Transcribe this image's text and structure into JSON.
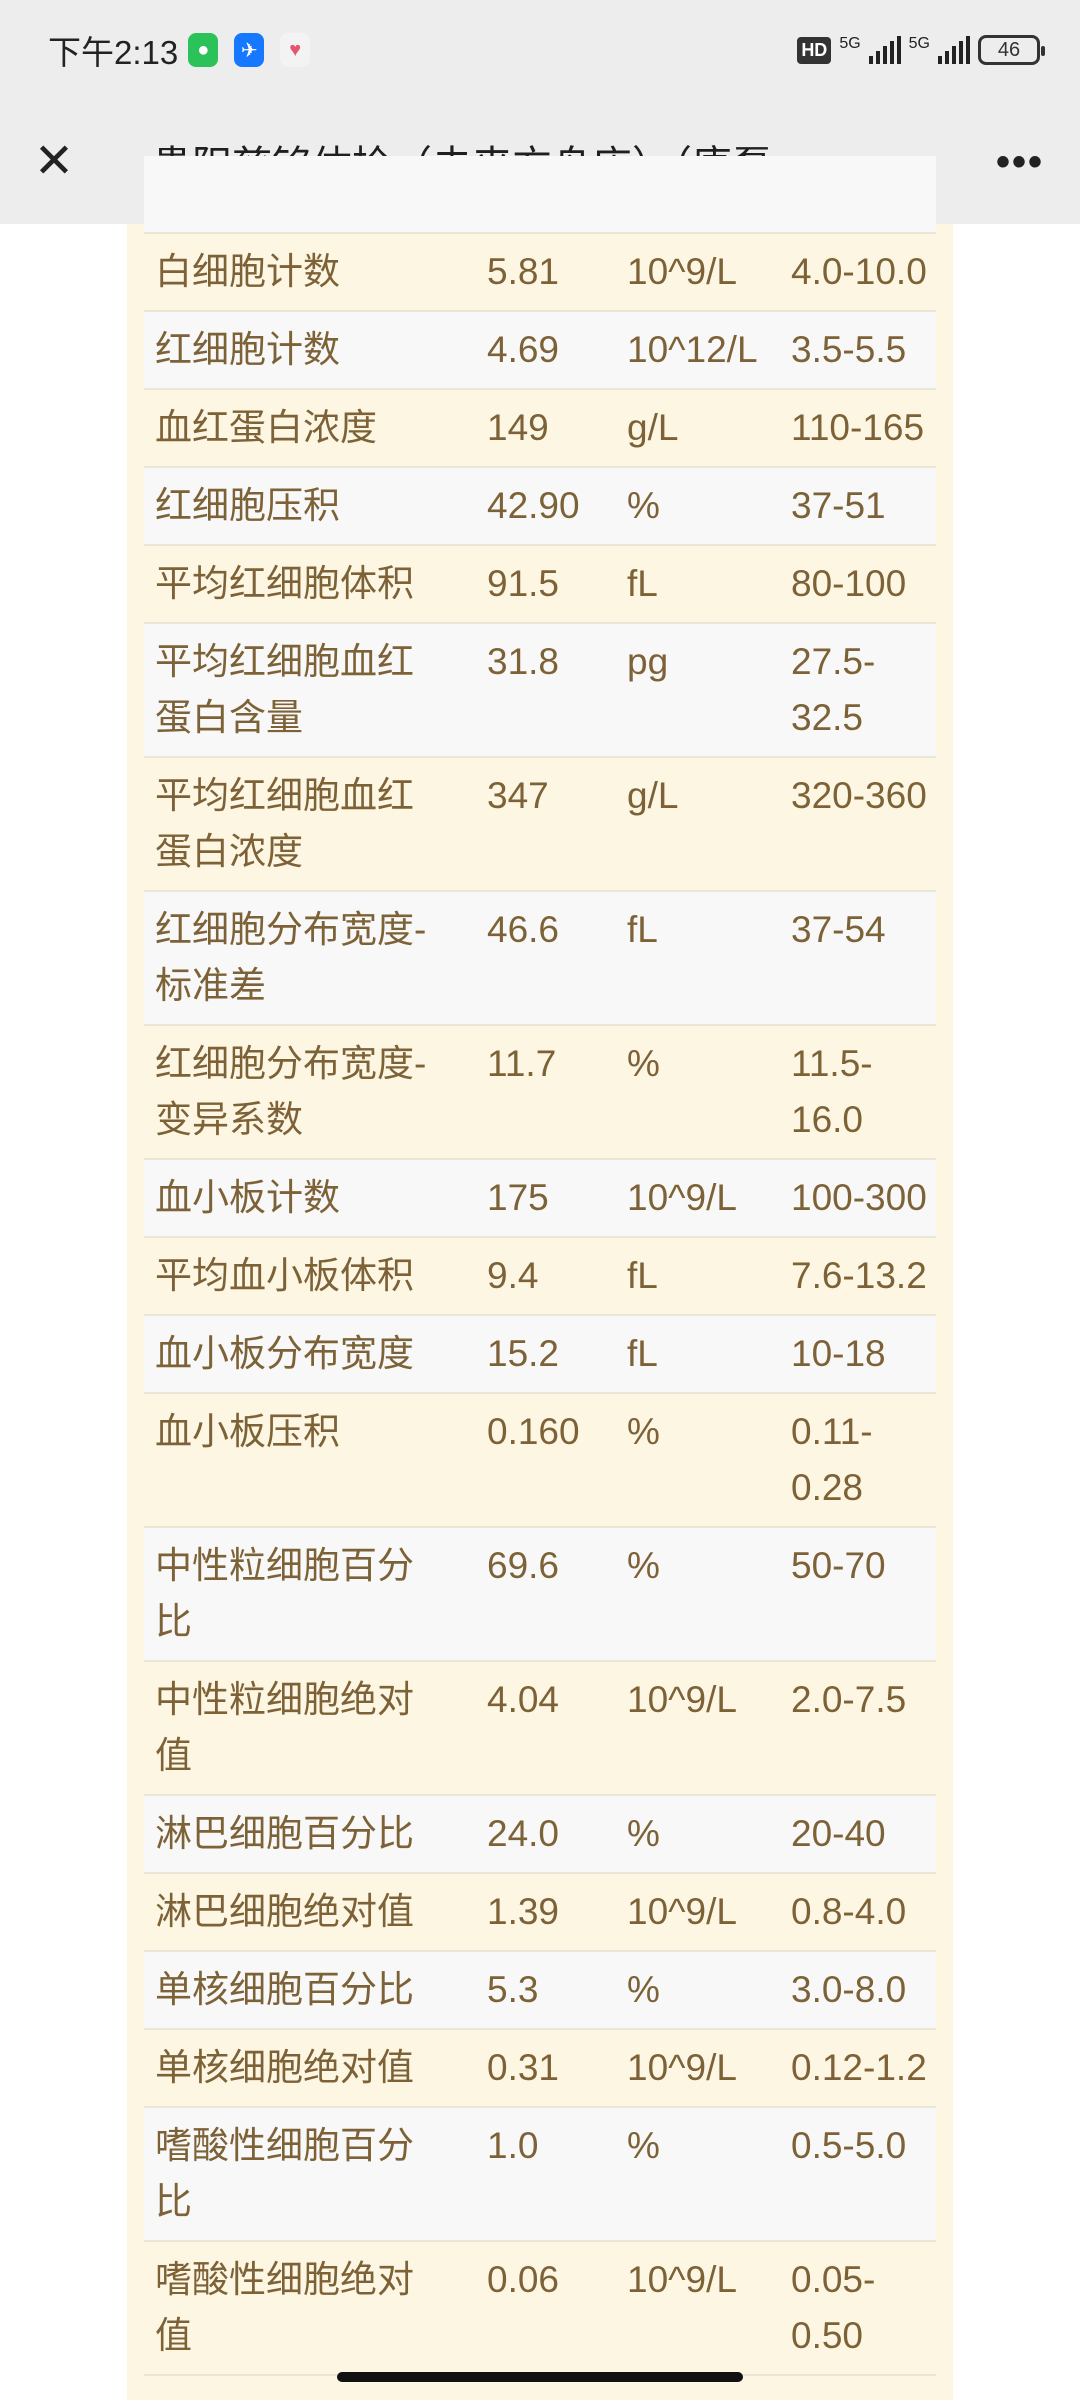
{
  "status_bar": {
    "time": "下午2:13",
    "battery": "46",
    "network": [
      "5G",
      "5G"
    ],
    "hd": "HD"
  },
  "header": {
    "title": "贵阳慈铭体检（未来方舟店）（唐磊…",
    "close_icon": "close-icon",
    "more_icon": "more-icon"
  },
  "rows": [
    {
      "name": "",
      "value": "",
      "unit": "",
      "range": ""
    },
    {
      "name": "白细胞计数",
      "value": "5.81",
      "unit": "10^9/L",
      "range": "4.0-10.0"
    },
    {
      "name": "红细胞计数",
      "value": "4.69",
      "unit": "10^12/L",
      "range": "3.5-5.5"
    },
    {
      "name": "血红蛋白浓度",
      "value": "149",
      "unit": "g/L",
      "range": "110-165"
    },
    {
      "name": "红细胞压积",
      "value": "42.90",
      "unit": "%",
      "range": "37-51"
    },
    {
      "name": "平均红细胞体积",
      "value": "91.5",
      "unit": "fL",
      "range": "80-100"
    },
    {
      "name": "平均红细胞血红蛋白含量",
      "value": "31.8",
      "unit": "pg",
      "range": "27.5-32.5"
    },
    {
      "name": "平均红细胞血红蛋白浓度",
      "value": "347",
      "unit": "g/L",
      "range": "320-360"
    },
    {
      "name": "红细胞分布宽度-标准差",
      "value": "46.6",
      "unit": "fL",
      "range": "37-54"
    },
    {
      "name": "红细胞分布宽度-变异系数",
      "value": "11.7",
      "unit": "%",
      "range": "11.5-16.0"
    },
    {
      "name": "血小板计数",
      "value": "175",
      "unit": "10^9/L",
      "range": "100-300"
    },
    {
      "name": "平均血小板体积",
      "value": "9.4",
      "unit": "fL",
      "range": "7.6-13.2"
    },
    {
      "name": "血小板分布宽度",
      "value": "15.2",
      "unit": "fL",
      "range": "10-18"
    },
    {
      "name": "血小板压积",
      "value": "0.160",
      "unit": "%",
      "range": "0.11-0.28"
    },
    {
      "name": "中性粒细胞百分比",
      "value": "69.6",
      "unit": "%",
      "range": "50-70"
    },
    {
      "name": "中性粒细胞绝对值",
      "value": "4.04",
      "unit": "10^9/L",
      "range": "2.0-7.5"
    },
    {
      "name": "淋巴细胞百分比",
      "value": "24.0",
      "unit": "%",
      "range": "20-40"
    },
    {
      "name": "淋巴细胞绝对值",
      "value": "1.39",
      "unit": "10^9/L",
      "range": "0.8-4.0"
    },
    {
      "name": "单核细胞百分比",
      "value": "5.3",
      "unit": "%",
      "range": "3.0-8.0"
    },
    {
      "name": "单核细胞绝对值",
      "value": "0.31",
      "unit": "10^9/L",
      "range": "0.12-1.2"
    },
    {
      "name": "嗜酸性细胞百分比",
      "value": "1.0",
      "unit": "%",
      "range": "0.5-5.0"
    },
    {
      "name": "嗜酸性细胞绝对值",
      "value": "0.06",
      "unit": "10^9/L",
      "range": "0.05-0.50"
    }
  ],
  "colors": {
    "text": "#7d6237",
    "cream": "#fdf6e3",
    "stripe": "#f8f8f8",
    "bar": "#ededed"
  }
}
